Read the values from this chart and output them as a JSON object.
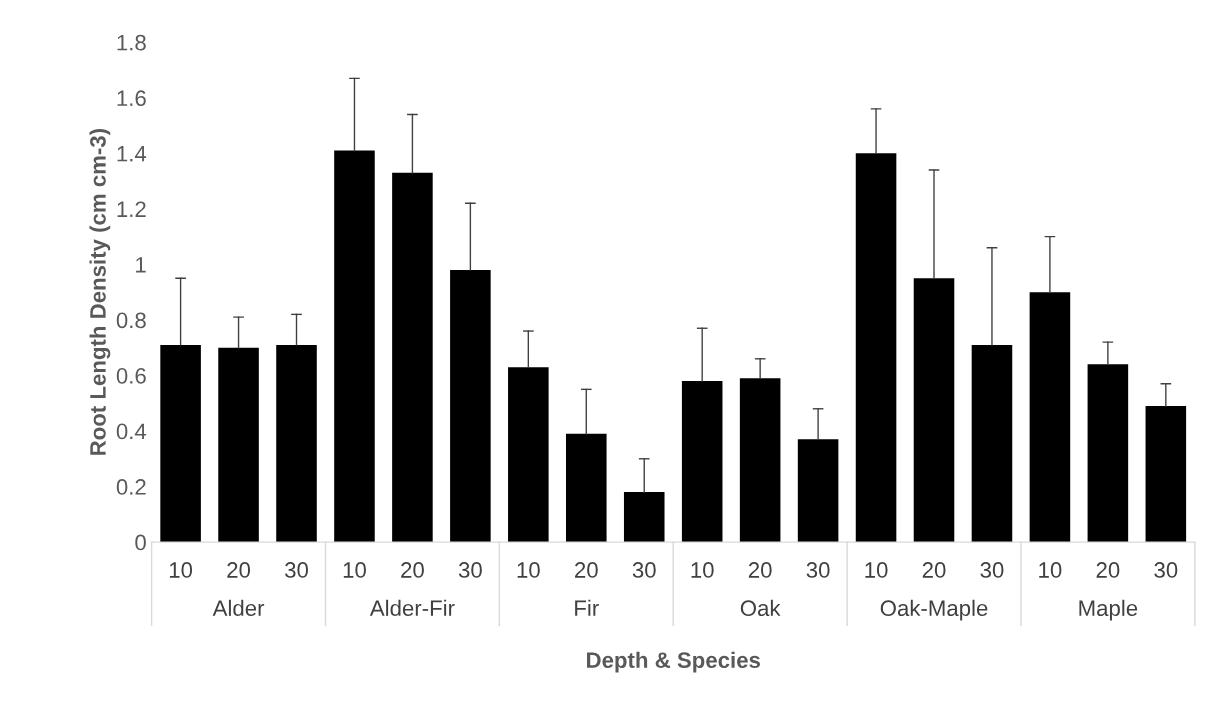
{
  "chart_data": {
    "type": "bar",
    "ylabel": "Root Length Density (cm cm-3)",
    "xlabel": "Depth & Species",
    "categories": [
      "10",
      "20",
      "30",
      "10",
      "20",
      "30",
      "10",
      "20",
      "30",
      "10",
      "20",
      "30",
      "10",
      "20",
      "30",
      "10",
      "20",
      "30"
    ],
    "values": [
      0.71,
      0.7,
      0.71,
      1.41,
      1.33,
      0.98,
      0.63,
      0.39,
      0.18,
      0.58,
      0.59,
      0.37,
      1.4,
      0.95,
      0.71,
      0.9,
      0.64,
      0.49
    ],
    "errors": [
      [
        0.71,
        0.95
      ],
      [
        0.7,
        0.81
      ],
      [
        0.71,
        0.82
      ],
      [
        1.41,
        1.67
      ],
      [
        1.33,
        1.54
      ],
      [
        0.98,
        1.22
      ],
      [
        0.63,
        0.76
      ],
      [
        0.39,
        0.55
      ],
      [
        0.18,
        0.3
      ],
      [
        0.58,
        0.77
      ],
      [
        0.59,
        0.66
      ],
      [
        0.37,
        0.48
      ],
      [
        1.4,
        1.56
      ],
      [
        0.95,
        1.34
      ],
      [
        0.71,
        1.06
      ],
      [
        0.9,
        1.1
      ],
      [
        0.64,
        0.72
      ],
      [
        0.49,
        0.57
      ]
    ],
    "annotations": [
      "Alder",
      "Alder-Fir",
      "Fir",
      "Oak",
      "Oak-Maple",
      "Maple"
    ],
    "color": "#000000",
    "ylim": [
      0,
      1.8
    ],
    "yticks": [
      0,
      0.2,
      0.4,
      0.6,
      0.8,
      1,
      1.2,
      1.4,
      1.6,
      1.8
    ],
    "grid": false,
    "legend": false
  }
}
